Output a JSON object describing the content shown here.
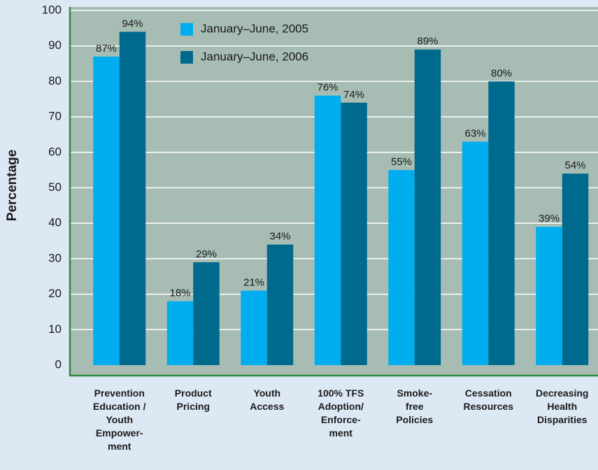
{
  "chart_data": {
    "type": "bar",
    "y_label": "Percentage",
    "categories": [
      "Prevention\nEducation /\nYouth\nEmpower-\nment",
      "Product\nPricing",
      "Youth\nAccess",
      "100% TFS\nAdoption/\nEnforce-\nment",
      "Smoke-\nfree\nPolicies",
      "Cessation\nResources",
      "Decreasing\nHealth\nDisparities"
    ],
    "series": [
      {
        "name": "January–June, 2005",
        "color": "#00aeef",
        "values": [
          87,
          18,
          21,
          76,
          55,
          63,
          39
        ],
        "value_labels": [
          "87%",
          "18%",
          "21%",
          "76%",
          "55%",
          "63%",
          "39%"
        ]
      },
      {
        "name": "January–June, 2006",
        "color": "#006a8e",
        "values": [
          94,
          29,
          34,
          74,
          89,
          80,
          54
        ],
        "value_labels": [
          "94%",
          "29%",
          "34%",
          "74%",
          "89%",
          "80%",
          "54%"
        ]
      }
    ],
    "ylim": [
      0,
      100
    ],
    "yticks": [
      0,
      10,
      20,
      30,
      40,
      50,
      60,
      70,
      80,
      90,
      100
    ],
    "grid": true
  }
}
